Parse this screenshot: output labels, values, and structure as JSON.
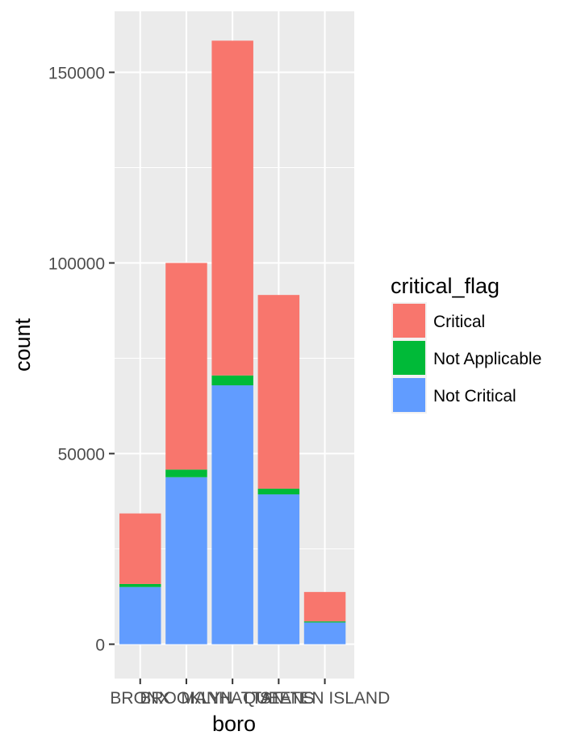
{
  "chart_data": {
    "type": "bar",
    "stacked": true,
    "title": "",
    "xlabel": "boro",
    "ylabel": "count",
    "categories": [
      "BRONX",
      "BROOKLYN",
      "MANHATTAN",
      "QUEENS",
      "STATEN ISLAND"
    ],
    "series": [
      {
        "name": "Not Critical",
        "color": "#619CFF",
        "values": [
          15000,
          43800,
          67900,
          39300,
          5700
        ]
      },
      {
        "name": "Not Applicable",
        "color": "#00BA38",
        "values": [
          800,
          2000,
          2600,
          1500,
          300
        ]
      },
      {
        "name": "Critical",
        "color": "#F8766D",
        "values": [
          18500,
          54200,
          87800,
          50800,
          7700
        ]
      }
    ],
    "stack_order": [
      "Not Critical",
      "Not Applicable",
      "Critical"
    ],
    "ylim": [
      -9000,
      166000
    ],
    "yticks": [
      0,
      50000,
      100000,
      150000
    ],
    "ytick_labels": [
      "0",
      "50000",
      "100000",
      "150000"
    ],
    "grid": true,
    "legend": {
      "title": "critical_flag",
      "placement": "right",
      "entries": [
        {
          "label": "Critical",
          "color": "#F8766D"
        },
        {
          "label": "Not Applicable",
          "color": "#00BA38"
        },
        {
          "label": "Not Critical",
          "color": "#619CFF"
        }
      ]
    }
  }
}
